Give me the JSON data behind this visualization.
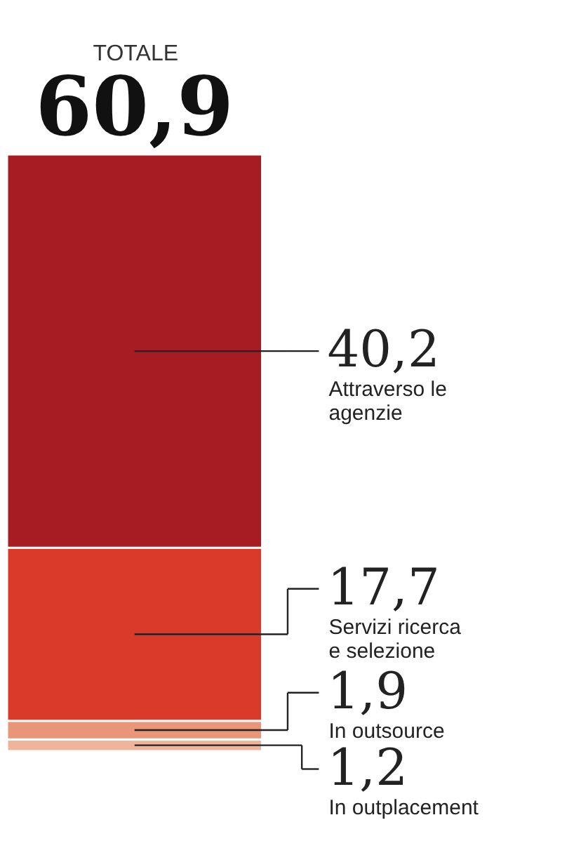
{
  "chart_data": {
    "type": "bar",
    "title": "TOTALE",
    "categories": [
      null
    ],
    "stacked": true,
    "legend": false,
    "totals": [
      "60,9"
    ],
    "series": [
      {
        "name": "In outplacement",
        "color": "#f0b49a",
        "values": [
          1.2
        ],
        "value_labels": [
          "1,2"
        ]
      },
      {
        "name": "In outsource",
        "color": "#e99578",
        "values": [
          1.9
        ],
        "value_labels": [
          "1,9"
        ]
      },
      {
        "name": "Servizi ricerca e selezione",
        "color": "#d93a2a",
        "values": [
          17.7
        ],
        "value_labels": [
          "17,7"
        ]
      },
      {
        "name": "Attraverso le agenzie",
        "color": "#a61c22",
        "values": [
          40.2
        ],
        "value_labels": [
          "40,2"
        ]
      }
    ]
  }
}
